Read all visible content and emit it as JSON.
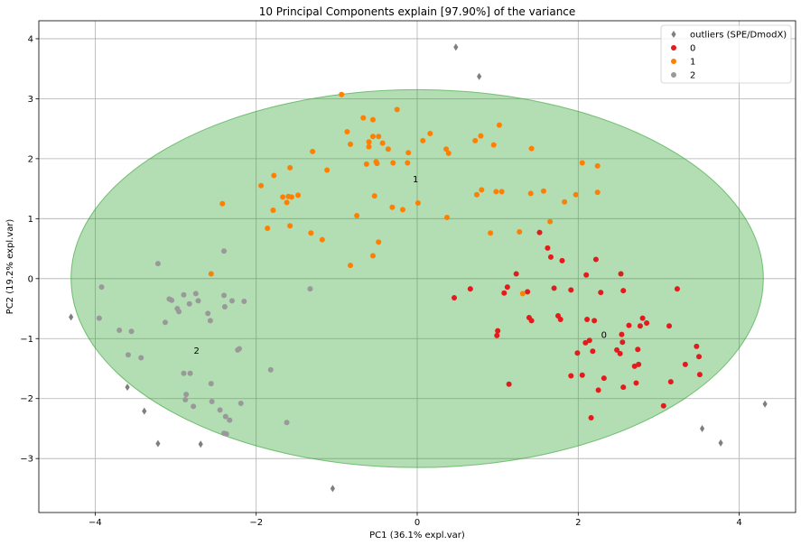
{
  "chart_data": {
    "type": "scatter",
    "title": "10 Principal Components explain [97.90%] of the variance",
    "xlabel": "PC1 (36.1% expl.var)",
    "ylabel": "PC2 (19.2% expl.var)",
    "xlim": [
      -4.7,
      4.7
    ],
    "ylim": [
      -3.9,
      4.3
    ],
    "xticks": [
      -4,
      -2,
      0,
      2,
      4
    ],
    "yticks": [
      -3,
      -2,
      -1,
      0,
      1,
      2,
      3,
      4
    ],
    "grid": true,
    "legend_position": "top-right",
    "ellipse": {
      "center": [
        0,
        0
      ],
      "rx": 4.3,
      "ry": 3.15,
      "color": "#2ca02c",
      "opacity": 0.36
    },
    "legend": [
      "outliers (SPE/DmodX)",
      "0",
      "1",
      "2"
    ],
    "cluster_labels": [
      {
        "text": "1",
        "x": -0.02,
        "y": 1.67
      },
      {
        "text": "0",
        "x": 2.32,
        "y": -0.93
      },
      {
        "text": "2",
        "x": -2.74,
        "y": -1.19
      }
    ],
    "series": [
      {
        "name": "outliers (SPE/DmodX)",
        "marker": "diamond",
        "color": "#7f7f7f",
        "points": [
          [
            0.48,
            3.86
          ],
          [
            0.77,
            3.37
          ],
          [
            -4.3,
            -0.64
          ],
          [
            -3.6,
            -1.81
          ],
          [
            -3.39,
            -2.21
          ],
          [
            -3.22,
            -2.75
          ],
          [
            -2.69,
            -2.76
          ],
          [
            -1.05,
            -3.5
          ],
          [
            3.54,
            -2.5
          ],
          [
            3.77,
            -2.74
          ],
          [
            4.32,
            -2.09
          ]
        ]
      },
      {
        "name": "0",
        "marker": "circle",
        "color": "#e41a1c",
        "points": [
          [
            0.46,
            -0.32
          ],
          [
            0.66,
            -0.17
          ],
          [
            0.99,
            -0.95
          ],
          [
            1.0,
            -0.87
          ],
          [
            1.08,
            -0.24
          ],
          [
            1.12,
            -0.14
          ],
          [
            1.14,
            -1.76
          ],
          [
            1.23,
            0.08
          ],
          [
            1.37,
            -0.22
          ],
          [
            1.39,
            -0.65
          ],
          [
            1.42,
            -0.7
          ],
          [
            1.52,
            0.77
          ],
          [
            1.62,
            0.51
          ],
          [
            1.66,
            0.36
          ],
          [
            1.7,
            -0.16
          ],
          [
            1.75,
            -0.62
          ],
          [
            1.78,
            -0.68
          ],
          [
            1.8,
            0.3
          ],
          [
            1.91,
            -1.62
          ],
          [
            1.91,
            -0.19
          ],
          [
            1.99,
            -1.24
          ],
          [
            2.05,
            -1.61
          ],
          [
            2.09,
            -1.07
          ],
          [
            2.1,
            0.06
          ],
          [
            2.11,
            -0.68
          ],
          [
            2.14,
            -1.03
          ],
          [
            2.16,
            -2.32
          ],
          [
            2.18,
            -1.21
          ],
          [
            2.2,
            -0.7
          ],
          [
            2.22,
            0.32
          ],
          [
            2.25,
            -1.86
          ],
          [
            2.28,
            -0.23
          ],
          [
            2.32,
            -1.66
          ],
          [
            2.48,
            -1.19
          ],
          [
            2.52,
            -1.25
          ],
          [
            2.54,
            -0.93
          ],
          [
            2.55,
            -1.06
          ],
          [
            2.56,
            -1.81
          ],
          [
            2.63,
            -0.78
          ],
          [
            2.7,
            -1.46
          ],
          [
            2.72,
            -1.74
          ],
          [
            2.74,
            -1.18
          ],
          [
            2.75,
            -1.43
          ],
          [
            2.77,
            -0.79
          ],
          [
            2.8,
            -0.66
          ],
          [
            2.85,
            -0.74
          ],
          [
            3.06,
            -2.12
          ],
          [
            3.13,
            -0.79
          ],
          [
            3.15,
            -1.72
          ],
          [
            3.23,
            -0.17
          ],
          [
            3.33,
            -1.43
          ],
          [
            3.47,
            -1.13
          ],
          [
            3.5,
            -1.3
          ],
          [
            3.51,
            -1.6
          ],
          [
            2.53,
            0.08
          ],
          [
            2.56,
            -0.2
          ]
        ]
      },
      {
        "name": "1",
        "marker": "circle",
        "color": "#ff7f00",
        "points": [
          [
            -0.94,
            3.07
          ],
          [
            -1.3,
            2.12
          ],
          [
            -0.67,
            2.68
          ],
          [
            -0.55,
            2.65
          ],
          [
            -0.25,
            2.82
          ],
          [
            -0.87,
            2.45
          ],
          [
            -0.83,
            2.24
          ],
          [
            -0.55,
            2.37
          ],
          [
            -0.48,
            2.37
          ],
          [
            -0.6,
            2.28
          ],
          [
            -0.6,
            2.2
          ],
          [
            -0.43,
            2.26
          ],
          [
            -0.36,
            2.16
          ],
          [
            -0.63,
            1.91
          ],
          [
            -0.5,
            1.92
          ],
          [
            -0.51,
            1.95
          ],
          [
            -0.3,
            1.93
          ],
          [
            -0.12,
            1.93
          ],
          [
            -0.11,
            2.1
          ],
          [
            0.07,
            2.3
          ],
          [
            0.16,
            2.42
          ],
          [
            0.36,
            2.16
          ],
          [
            0.39,
            2.09
          ],
          [
            0.72,
            2.3
          ],
          [
            0.79,
            2.38
          ],
          [
            0.95,
            2.23
          ],
          [
            1.02,
            2.56
          ],
          [
            1.42,
            2.17
          ],
          [
            -1.12,
            1.81
          ],
          [
            -1.58,
            1.85
          ],
          [
            -1.78,
            1.72
          ],
          [
            -1.94,
            1.55
          ],
          [
            -1.79,
            1.14
          ],
          [
            -1.67,
            1.36
          ],
          [
            -1.6,
            1.37
          ],
          [
            -1.62,
            1.27
          ],
          [
            -1.56,
            1.36
          ],
          [
            -1.48,
            1.39
          ],
          [
            -1.32,
            0.76
          ],
          [
            -1.18,
            0.65
          ],
          [
            -1.58,
            0.88
          ],
          [
            -1.86,
            0.84
          ],
          [
            -0.75,
            1.05
          ],
          [
            -0.53,
            1.38
          ],
          [
            -0.31,
            1.19
          ],
          [
            -0.18,
            1.15
          ],
          [
            0.01,
            1.26
          ],
          [
            0.37,
            1.02
          ],
          [
            0.74,
            1.4
          ],
          [
            0.8,
            1.48
          ],
          [
            0.98,
            1.45
          ],
          [
            1.05,
            1.45
          ],
          [
            0.91,
            0.76
          ],
          [
            1.27,
            0.78
          ],
          [
            1.31,
            -0.25
          ],
          [
            1.41,
            1.42
          ],
          [
            1.57,
            1.46
          ],
          [
            1.65,
            0.95
          ],
          [
            1.83,
            1.28
          ],
          [
            1.97,
            1.4
          ],
          [
            2.05,
            1.93
          ],
          [
            2.24,
            1.44
          ],
          [
            2.24,
            1.88
          ],
          [
            -2.42,
            1.25
          ],
          [
            -2.56,
            0.08
          ],
          [
            -0.83,
            0.22
          ],
          [
            -0.55,
            0.38
          ],
          [
            -0.48,
            0.61
          ]
        ]
      },
      {
        "name": "2",
        "marker": "circle",
        "color": "#999999",
        "points": [
          [
            -3.92,
            -0.14
          ],
          [
            -3.95,
            -0.66
          ],
          [
            -3.22,
            0.25
          ],
          [
            -3.08,
            -0.34
          ],
          [
            -3.05,
            -0.36
          ],
          [
            -2.98,
            -0.5
          ],
          [
            -2.9,
            -0.27
          ],
          [
            -2.83,
            -0.42
          ],
          [
            -2.75,
            -0.25
          ],
          [
            -2.72,
            -0.37
          ],
          [
            -2.6,
            -0.58
          ],
          [
            -2.57,
            -0.7
          ],
          [
            -2.4,
            -0.28
          ],
          [
            -2.39,
            -0.47
          ],
          [
            -2.3,
            -0.37
          ],
          [
            -2.15,
            -0.38
          ],
          [
            -3.7,
            -0.86
          ],
          [
            -3.55,
            -0.88
          ],
          [
            -3.43,
            -1.32
          ],
          [
            -3.13,
            -0.73
          ],
          [
            -3.59,
            -1.27
          ],
          [
            -2.96,
            -0.55
          ],
          [
            -2.4,
            0.46
          ],
          [
            -1.33,
            -0.17
          ],
          [
            -2.9,
            -1.58
          ],
          [
            -2.82,
            -1.58
          ],
          [
            -2.56,
            -1.75
          ],
          [
            -2.87,
            -1.93
          ],
          [
            -2.88,
            -2.02
          ],
          [
            -2.78,
            -2.13
          ],
          [
            -2.55,
            -2.05
          ],
          [
            -2.45,
            -2.19
          ],
          [
            -2.38,
            -2.3
          ],
          [
            -2.33,
            -2.36
          ],
          [
            -2.4,
            -2.58
          ],
          [
            -2.37,
            -2.59
          ],
          [
            -2.19,
            -2.08
          ],
          [
            -2.23,
            -1.19
          ],
          [
            -2.21,
            -1.17
          ],
          [
            -1.82,
            -1.52
          ],
          [
            -1.62,
            -2.4
          ]
        ]
      }
    ]
  }
}
